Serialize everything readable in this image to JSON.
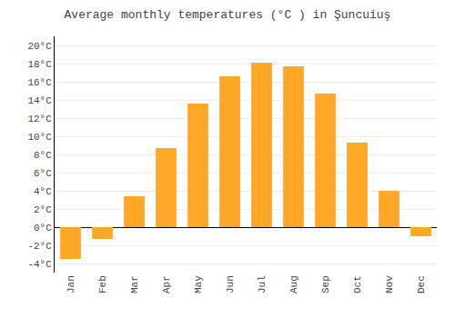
{
  "chart_data": {
    "type": "bar",
    "title": "Average monthly temperatures (°C ) in Şuncuiuş",
    "categories": [
      "Jan",
      "Feb",
      "Mar",
      "Apr",
      "May",
      "Jun",
      "Jul",
      "Aug",
      "Sep",
      "Oct",
      "Nov",
      "Dec"
    ],
    "values": [
      -3.5,
      -1.3,
      3.4,
      8.7,
      13.6,
      16.6,
      18.1,
      17.7,
      14.7,
      9.3,
      4.0,
      -1.0
    ],
    "color": "#FFA726",
    "ylim": [
      -5,
      21
    ],
    "yticks": [
      {
        "value": -4,
        "label": "-4°C"
      },
      {
        "value": -2,
        "label": "-2°C"
      },
      {
        "value": 0,
        "label": "0°C"
      },
      {
        "value": 2,
        "label": "2°C"
      },
      {
        "value": 4,
        "label": "4°C"
      },
      {
        "value": 6,
        "label": "6°C"
      },
      {
        "value": 8,
        "label": "8°C"
      },
      {
        "value": 10,
        "label": "10°C"
      },
      {
        "value": 12,
        "label": "12°C"
      },
      {
        "value": 14,
        "label": "14°C"
      },
      {
        "value": 16,
        "label": "16°C"
      },
      {
        "value": 18,
        "label": "18°C"
      },
      {
        "value": 20,
        "label": "20°C"
      }
    ],
    "grid": true
  }
}
